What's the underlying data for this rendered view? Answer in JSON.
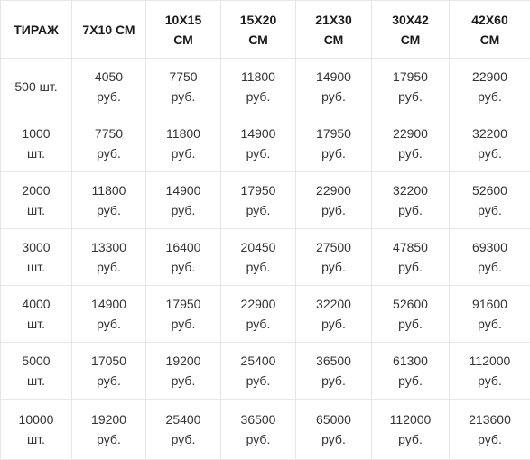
{
  "table": {
    "headers": [
      {
        "line1": "ТИРАЖ",
        "line2": ""
      },
      {
        "line1": "7X10 СМ",
        "line2": ""
      },
      {
        "line1": "10X15",
        "line2": "СМ"
      },
      {
        "line1": "15X20",
        "line2": "СМ"
      },
      {
        "line1": "21X30",
        "line2": "СМ"
      },
      {
        "line1": "30X42",
        "line2": "СМ"
      },
      {
        "line1": "42X60",
        "line2": "СМ"
      }
    ],
    "rows": [
      {
        "qty": {
          "line1": "500 шт.",
          "line2": ""
        },
        "prices": [
          {
            "line1": "4050",
            "line2": "руб."
          },
          {
            "line1": "7750",
            "line2": "руб."
          },
          {
            "line1": "11800",
            "line2": "руб."
          },
          {
            "line1": "14900",
            "line2": "руб."
          },
          {
            "line1": "17950",
            "line2": "руб."
          },
          {
            "line1": "22900",
            "line2": "руб."
          }
        ]
      },
      {
        "qty": {
          "line1": "1000",
          "line2": "шт."
        },
        "prices": [
          {
            "line1": "7750",
            "line2": "руб."
          },
          {
            "line1": "11800",
            "line2": "руб."
          },
          {
            "line1": "14900",
            "line2": "руб."
          },
          {
            "line1": "17950",
            "line2": "руб."
          },
          {
            "line1": "22900",
            "line2": "руб."
          },
          {
            "line1": "32200",
            "line2": "руб."
          }
        ]
      },
      {
        "qty": {
          "line1": "2000",
          "line2": "шт."
        },
        "prices": [
          {
            "line1": "11800",
            "line2": "руб."
          },
          {
            "line1": "14900",
            "line2": "руб."
          },
          {
            "line1": "17950",
            "line2": "руб."
          },
          {
            "line1": "22900",
            "line2": "руб."
          },
          {
            "line1": "32200",
            "line2": "руб."
          },
          {
            "line1": "52600",
            "line2": "руб."
          }
        ]
      },
      {
        "qty": {
          "line1": "3000",
          "line2": "шт."
        },
        "prices": [
          {
            "line1": "13300",
            "line2": "руб."
          },
          {
            "line1": "16400",
            "line2": "руб."
          },
          {
            "line1": "20450",
            "line2": "руб."
          },
          {
            "line1": "27500",
            "line2": "руб."
          },
          {
            "line1": "47850",
            "line2": "руб."
          },
          {
            "line1": "69300",
            "line2": "руб."
          }
        ]
      },
      {
        "qty": {
          "line1": "4000",
          "line2": "шт."
        },
        "prices": [
          {
            "line1": "14900",
            "line2": "руб."
          },
          {
            "line1": "17950",
            "line2": "руб."
          },
          {
            "line1": "22900",
            "line2": "руб."
          },
          {
            "line1": "32200",
            "line2": "руб."
          },
          {
            "line1": "52600",
            "line2": "руб."
          },
          {
            "line1": "91600",
            "line2": "руб."
          }
        ]
      },
      {
        "qty": {
          "line1": "5000",
          "line2": "шт."
        },
        "prices": [
          {
            "line1": "17050",
            "line2": "руб."
          },
          {
            "line1": "19200",
            "line2": "руб."
          },
          {
            "line1": "25400",
            "line2": "руб."
          },
          {
            "line1": "36500",
            "line2": "руб."
          },
          {
            "line1": "61300",
            "line2": "руб."
          },
          {
            "line1": "112000",
            "line2": "руб."
          }
        ]
      },
      {
        "qty": {
          "line1": "10000",
          "line2": "шт."
        },
        "prices": [
          {
            "line1": "19200",
            "line2": "руб."
          },
          {
            "line1": "25400",
            "line2": "руб."
          },
          {
            "line1": "36500",
            "line2": "руб."
          },
          {
            "line1": "65000",
            "line2": "руб."
          },
          {
            "line1": "112000",
            "line2": "руб."
          },
          {
            "line1": "213600",
            "line2": "руб."
          }
        ]
      }
    ]
  }
}
